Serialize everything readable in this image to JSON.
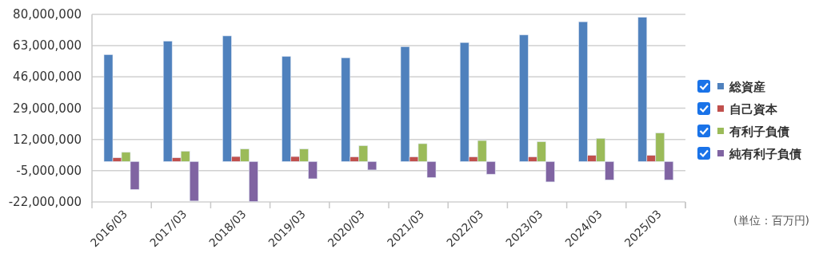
{
  "chart_data": {
    "type": "bar",
    "categories": [
      "2016/03",
      "2017/03",
      "2018/03",
      "2019/03",
      "2020/03",
      "2021/03",
      "2022/03",
      "2023/03",
      "2024/03",
      "2025/03"
    ],
    "series": [
      {
        "name": "総資産",
        "color": "#4f81bd",
        "values": [
          58100000,
          65400000,
          68300000,
          57100000,
          56400000,
          62400000,
          64700000,
          68800000,
          76000000,
          78400000
        ]
      },
      {
        "name": "自己資本",
        "color": "#c0504d",
        "values": [
          2000000,
          2000000,
          2700000,
          2700000,
          2500000,
          2500000,
          2500000,
          2500000,
          3300000,
          3300000
        ]
      },
      {
        "name": "有利子負債",
        "color": "#9bbb59",
        "values": [
          5000000,
          5600000,
          6800000,
          6800000,
          8600000,
          9700000,
          11400000,
          10800000,
          12600000,
          15500000
        ]
      },
      {
        "name": "純有利子負債",
        "color": "#8064a2",
        "values": [
          -15200000,
          -21500000,
          -21800000,
          -9400000,
          -4600000,
          -8700000,
          -6900000,
          -11100000,
          -10000000,
          -10000000
        ]
      }
    ],
    "ylim": [
      -22000000,
      80000000
    ],
    "yticks": [
      {
        "value": -22000000,
        "label": "-22,000,000"
      },
      {
        "value": -5000000,
        "label": "-5,000,000"
      },
      {
        "value": 12000000,
        "label": "12,000,000"
      },
      {
        "value": 29000000,
        "label": "29,000,000"
      },
      {
        "value": 46000000,
        "label": "46,000,000"
      },
      {
        "value": 63000000,
        "label": "63,000,000"
      },
      {
        "value": 80000000,
        "label": "80,000,000"
      }
    ],
    "grid": "y",
    "legend": "right",
    "annotations": [
      "(単位：百万円)"
    ]
  }
}
